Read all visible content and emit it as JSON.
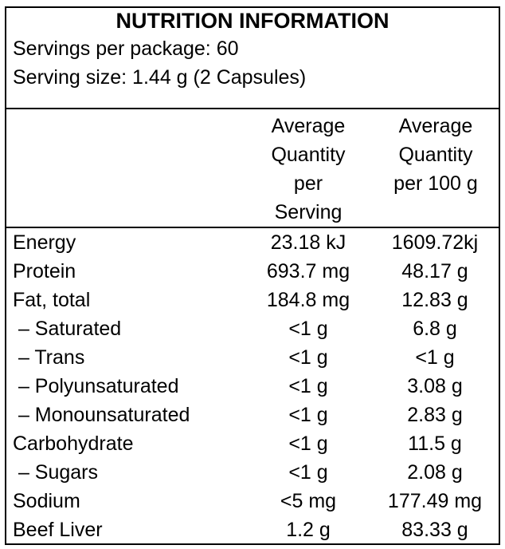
{
  "title": "NUTRITION INFORMATION",
  "servings_per_package": "Servings per package: 60",
  "serving_size": "Serving size: 1.44 g (2 Capsules)",
  "columns": {
    "per_serving": "Average\nQuantity\nper\nServing",
    "per_100g": "Average\nQuantity\nper 100 g"
  },
  "rows": [
    {
      "name": "Energy",
      "per_serving": "23.18 kJ",
      "per_100g": "1609.72kj"
    },
    {
      "name": "Protein",
      "per_serving": "693.7 mg",
      "per_100g": "48.17 g"
    },
    {
      "name": "Fat, total",
      "per_serving": "184.8 mg",
      "per_100g": "12.83 g"
    },
    {
      "name": " – Saturated",
      "per_serving": "<1 g",
      "per_100g": "6.8 g"
    },
    {
      "name": " – Trans",
      "per_serving": "<1 g",
      "per_100g": "<1 g"
    },
    {
      "name": " – Polyunsaturated",
      "per_serving": "<1 g",
      "per_100g": "3.08 g"
    },
    {
      "name": " – Monounsaturated",
      "per_serving": "<1 g",
      "per_100g": "2.83 g"
    },
    {
      "name": "Carbohydrate",
      "per_serving": "<1 g",
      "per_100g": "11.5 g"
    },
    {
      "name": " – Sugars",
      "per_serving": "<1 g",
      "per_100g": "2.08 g"
    },
    {
      "name": "Sodium",
      "per_serving": "<5 mg",
      "per_100g": "177.49 mg"
    },
    {
      "name": "Beef Liver",
      "per_serving": "1.2 g",
      "per_100g": "83.33 g"
    }
  ]
}
